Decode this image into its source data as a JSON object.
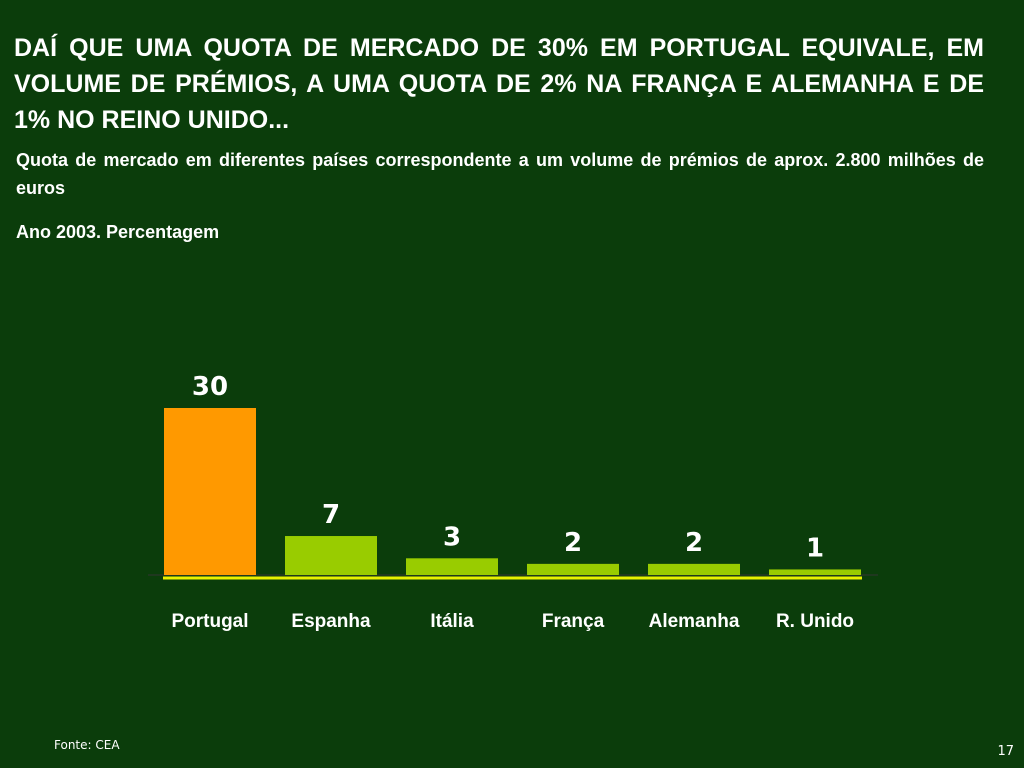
{
  "slide": {
    "title": "DAÍ QUE UMA QUOTA DE MERCADO DE 30% EM PORTUGAL EQUIVALE, EM VOLUME DE PRÉMIOS, A UMA QUOTA DE 2% NA FRANÇA E ALEMANHA E DE 1% NO REINO UNIDO...",
    "subtitle": "Quota de mercado em diferentes países correspondente a um volume de prémios de aprox. 2.800 milhões de euros",
    "unit_label": "Ano 2003. Percentagem",
    "source": "Fonte: CEA",
    "page_number": "17"
  },
  "colors": {
    "background": "#0b3d0b",
    "highlight_bar": "#ff9900",
    "bar": "#99cc00",
    "baseline": "#e8f000"
  },
  "chart_data": {
    "type": "bar",
    "categories": [
      "Portugal",
      "Espanha",
      "Itália",
      "França",
      "Alemanha",
      "R. Unido"
    ],
    "values": [
      30,
      7,
      3,
      2,
      2,
      1
    ],
    "data_labels": [
      "30",
      "7",
      "3",
      "2",
      "2",
      "1"
    ],
    "highlight_index": 0,
    "ylim": [
      0,
      30
    ],
    "grid": false,
    "legend": "none"
  }
}
